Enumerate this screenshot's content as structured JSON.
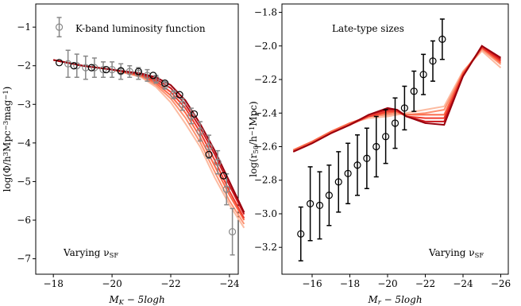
{
  "chart_data": [
    {
      "type": "line",
      "annotations": [
        "K-band luminosity function",
        [
          "Varying ν",
          {
            "sub": "SF"
          }
        ]
      ],
      "xlabel": [
        "M",
        {
          "sub": "K"
        },
        " − 5logh"
      ],
      "ylabel": [
        "log(Φ/h",
        {
          "sup": "3"
        },
        "Mpc",
        {
          "sup": "−3"
        },
        "mag",
        {
          "sup": "−1"
        },
        ")"
      ],
      "xlim": [
        -17.4,
        -24.3
      ],
      "ylim": [
        -7.4,
        -0.4
      ],
      "xticks": [
        {
          "value": -18,
          "label": "−18"
        },
        {
          "value": -20,
          "label": "−20"
        },
        {
          "value": -22,
          "label": "−22"
        },
        {
          "value": -24,
          "label": "−24"
        }
      ],
      "yticks": [
        {
          "value": -1,
          "label": "−1"
        },
        {
          "value": -2,
          "label": "−2"
        },
        {
          "value": -3,
          "label": "−3"
        },
        {
          "value": -4,
          "label": "−4"
        },
        {
          "value": -5,
          "label": "−5"
        },
        {
          "value": -6,
          "label": "−6"
        },
        {
          "value": -7,
          "label": "−7"
        }
      ],
      "line_x": [
        -18.0,
        -19.0,
        -20.0,
        -21.0,
        -21.5,
        -22.0,
        -22.5,
        -23.0,
        -23.5,
        -24.0,
        -24.5
      ],
      "series": [
        {
          "color": "#fcbba1",
          "values": [
            -1.85,
            -2.0,
            -2.1,
            -2.3,
            -2.55,
            -2.95,
            -3.5,
            -4.1,
            -4.9,
            -5.6,
            -6.2
          ]
        },
        {
          "color": "#fc9272",
          "values": [
            -1.85,
            -2.0,
            -2.1,
            -2.28,
            -2.5,
            -2.85,
            -3.35,
            -3.98,
            -4.75,
            -5.5,
            -6.1
          ]
        },
        {
          "color": "#fb6a4a",
          "values": [
            -1.85,
            -2.0,
            -2.1,
            -2.26,
            -2.45,
            -2.77,
            -3.22,
            -3.85,
            -4.6,
            -5.35,
            -6.0
          ]
        },
        {
          "color": "#ef3b2c",
          "values": [
            -1.85,
            -2.0,
            -2.1,
            -2.24,
            -2.4,
            -2.68,
            -3.1,
            -3.72,
            -4.45,
            -5.25,
            -5.95
          ]
        },
        {
          "color": "#cb181d",
          "values": [
            -1.85,
            -2.0,
            -2.1,
            -2.22,
            -2.35,
            -2.58,
            -3.0,
            -3.6,
            -4.3,
            -5.1,
            -5.85
          ]
        },
        {
          "color": "#99000d",
          "values": [
            -1.85,
            -2.0,
            -2.1,
            -2.2,
            -2.3,
            -2.5,
            -2.9,
            -3.5,
            -4.2,
            -5.0,
            -5.8
          ]
        }
      ],
      "points": [
        {
          "color": "#888888",
          "x": [
            -18.2,
            -18.5,
            -18.8,
            -19.1,
            -19.4,
            -19.7,
            -20.0,
            -20.3,
            -20.6,
            -20.9,
            -21.2,
            -21.5,
            -21.8,
            -22.1,
            -22.4,
            -22.7,
            -23.0,
            -23.3,
            -23.6,
            -23.9,
            -24.1
          ],
          "values": [
            -1.0,
            -1.95,
            -2.0,
            -2.05,
            -2.05,
            -2.1,
            -2.1,
            -2.15,
            -2.15,
            -2.2,
            -2.25,
            -2.35,
            -2.5,
            -2.75,
            -3.0,
            -3.3,
            -3.7,
            -4.1,
            -4.5,
            -5.2,
            -6.3
          ],
          "errors": [
            0.25,
            0.35,
            0.3,
            0.3,
            0.25,
            0.2,
            0.2,
            0.2,
            0.15,
            0.15,
            0.15,
            0.1,
            0.1,
            0.1,
            0.15,
            0.2,
            0.25,
            0.3,
            0.3,
            0.4,
            0.6
          ]
        },
        {
          "color": "#000000",
          "x": [
            -18.2,
            -18.7,
            -19.3,
            -19.8,
            -20.3,
            -20.9,
            -21.4,
            -21.8,
            -22.3,
            -22.8,
            -23.3,
            -23.8
          ],
          "values": [
            -1.92,
            -2.0,
            -2.05,
            -2.1,
            -2.13,
            -2.15,
            -2.25,
            -2.45,
            -2.75,
            -3.25,
            -4.3,
            -4.85
          ]
        }
      ]
    },
    {
      "type": "line",
      "annotations": [
        "Late-type sizes",
        [
          "Varying ν",
          {
            "sub": "SF"
          }
        ]
      ],
      "xlabel": [
        "M",
        {
          "sub": "r"
        },
        " − 5logh"
      ],
      "ylabel": [
        "log(r",
        {
          "sub": "50"
        },
        "/h",
        {
          "sup": "−1"
        },
        "Mpc)"
      ],
      "xlim": [
        -14.4,
        -26.4
      ],
      "ylim": [
        -3.36,
        -1.75
      ],
      "xticks": [
        {
          "value": -16,
          "label": "−16"
        },
        {
          "value": -18,
          "label": "−18"
        },
        {
          "value": -20,
          "label": "−20"
        },
        {
          "value": -22,
          "label": "−22"
        },
        {
          "value": -24,
          "label": "−24"
        },
        {
          "value": -26,
          "label": "−26"
        }
      ],
      "yticks": [
        {
          "value": -1.8,
          "label": "−1.8"
        },
        {
          "value": -2.0,
          "label": "−2.0"
        },
        {
          "value": -2.2,
          "label": "−2.2"
        },
        {
          "value": -2.4,
          "label": "−2.4"
        },
        {
          "value": -2.6,
          "label": "−2.6"
        },
        {
          "value": -2.8,
          "label": "−2.8"
        },
        {
          "value": -3.0,
          "label": "−3.0"
        },
        {
          "value": -3.2,
          "label": "−3.2"
        }
      ],
      "line_x": [
        -15,
        -16,
        -17,
        -18,
        -19,
        -20,
        -20.5,
        -21,
        -22,
        -23,
        -24,
        -25,
        -26
      ],
      "series": [
        {
          "color": "#fcbba1",
          "values": [
            -2.62,
            -2.57,
            -2.51,
            -2.46,
            -2.43,
            -2.42,
            -2.41,
            -2.4,
            -2.38,
            -2.36,
            -2.15,
            -2.03,
            -2.13
          ]
        },
        {
          "color": "#fc9272",
          "values": [
            -2.62,
            -2.57,
            -2.51,
            -2.46,
            -2.42,
            -2.41,
            -2.4,
            -2.41,
            -2.4,
            -2.38,
            -2.16,
            -2.02,
            -2.11
          ]
        },
        {
          "color": "#fb6a4a",
          "values": [
            -2.62,
            -2.57,
            -2.51,
            -2.46,
            -2.42,
            -2.4,
            -2.39,
            -2.41,
            -2.41,
            -2.41,
            -2.16,
            -2.01,
            -2.1
          ]
        },
        {
          "color": "#ef3b2c",
          "values": [
            -2.63,
            -2.58,
            -2.52,
            -2.47,
            -2.42,
            -2.39,
            -2.39,
            -2.42,
            -2.43,
            -2.43,
            -2.17,
            -2.01,
            -2.09
          ]
        },
        {
          "color": "#cb181d",
          "values": [
            -2.63,
            -2.58,
            -2.52,
            -2.47,
            -2.41,
            -2.38,
            -2.38,
            -2.42,
            -2.45,
            -2.45,
            -2.18,
            -2.0,
            -2.08
          ]
        },
        {
          "color": "#99000d",
          "values": [
            -2.63,
            -2.58,
            -2.52,
            -2.47,
            -2.41,
            -2.37,
            -2.38,
            -2.42,
            -2.46,
            -2.47,
            -2.18,
            -2.0,
            -2.07
          ]
        }
      ],
      "points": [
        {
          "color": "#000000",
          "x": [
            -15.4,
            -15.9,
            -16.4,
            -16.9,
            -17.4,
            -17.9,
            -18.4,
            -18.9,
            -19.4,
            -19.9,
            -20.4,
            -20.9,
            -21.4,
            -21.9,
            -22.4,
            -22.9
          ],
          "values": [
            -3.12,
            -2.94,
            -2.95,
            -2.89,
            -2.81,
            -2.76,
            -2.71,
            -2.67,
            -2.6,
            -2.54,
            -2.46,
            -2.37,
            -2.27,
            -2.17,
            -2.09,
            -1.96
          ],
          "errors": [
            0.16,
            0.22,
            0.2,
            0.18,
            0.18,
            0.18,
            0.18,
            0.18,
            0.18,
            0.16,
            0.15,
            0.13,
            0.12,
            0.12,
            0.12,
            0.12
          ]
        }
      ]
    }
  ]
}
